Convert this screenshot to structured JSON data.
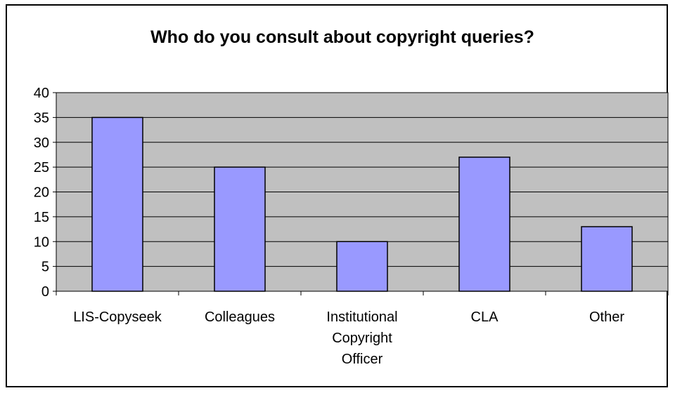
{
  "chart_data": {
    "type": "bar",
    "title": "Who do you consult about copyright queries?",
    "categories": [
      "LIS-Copyseek",
      "Colleagues",
      "Institutional Copyright Officer",
      "CLA",
      "Other"
    ],
    "category_lines": [
      [
        "LIS-Copyseek"
      ],
      [
        "Colleagues"
      ],
      [
        "Institutional",
        "Copyright",
        "Officer"
      ],
      [
        "CLA"
      ],
      [
        "Other"
      ]
    ],
    "values": [
      35,
      25,
      10,
      27,
      13
    ],
    "ylim": [
      0,
      40
    ],
    "yticks": [
      0,
      5,
      10,
      15,
      20,
      25,
      30,
      35,
      40
    ],
    "xlabel": "",
    "ylabel": "",
    "grid": true,
    "legend": "none",
    "colors": {
      "bar_fill": "#9999ff",
      "plot_background": "#c0c0c0",
      "gridline": "#000000",
      "frame": "#000000"
    }
  }
}
